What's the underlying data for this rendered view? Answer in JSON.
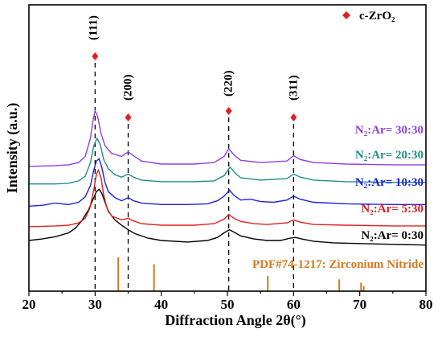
{
  "chart_data": {
    "type": "line",
    "xlabel": "Diffraction Angle 2θ(°)",
    "ylabel": "Intensity (a.u.)",
    "xlim": [
      20,
      80
    ],
    "xticks": [
      20,
      30,
      40,
      50,
      60,
      70,
      80
    ],
    "y_tick_labels": false,
    "legend": {
      "entries": [
        {
          "marker": "diamond",
          "color": "#e02020",
          "label": "c-ZrO₂"
        }
      ],
      "placement": "top-right"
    },
    "peaks": [
      {
        "x": 30,
        "label": "(111)"
      },
      {
        "x": 35,
        "label": "(200)"
      },
      {
        "x": 50.2,
        "label": "(220)"
      },
      {
        "x": 60,
        "label": "(311)"
      }
    ],
    "reference": {
      "label": "PDF#74-1217: Zirconium Nitride",
      "color": "#d4781f",
      "lines": [
        {
          "x": 33.5,
          "intensity": 1.0
        },
        {
          "x": 38.9,
          "intensity": 0.8
        },
        {
          "x": 56.1,
          "intensity": 0.45
        },
        {
          "x": 66.9,
          "intensity": 0.35
        },
        {
          "x": 70.2,
          "intensity": 0.25
        },
        {
          "x": 70.6,
          "intensity": 0.15
        }
      ]
    },
    "series": [
      {
        "name": "N₂:Ar= 0:30",
        "color": "#000000",
        "baseline": 0,
        "points": [
          [
            20,
            8
          ],
          [
            22,
            10
          ],
          [
            24,
            13
          ],
          [
            26,
            18
          ],
          [
            27,
            24
          ],
          [
            28,
            34
          ],
          [
            29,
            48
          ],
          [
            29.6,
            60
          ],
          [
            30.2,
            72
          ],
          [
            30.6,
            75
          ],
          [
            31,
            70
          ],
          [
            31.5,
            58
          ],
          [
            32,
            46
          ],
          [
            33,
            35
          ],
          [
            34,
            28
          ],
          [
            35,
            22
          ],
          [
            36,
            17
          ],
          [
            38,
            11
          ],
          [
            40,
            8
          ],
          [
            44,
            6
          ],
          [
            47,
            8
          ],
          [
            48.5,
            12
          ],
          [
            49.5,
            18
          ],
          [
            50.3,
            22
          ],
          [
            51,
            19
          ],
          [
            52,
            14
          ],
          [
            54,
            10
          ],
          [
            56,
            8
          ],
          [
            58,
            8
          ],
          [
            59.5,
            11
          ],
          [
            60.3,
            12
          ],
          [
            61.2,
            10
          ],
          [
            63,
            7
          ],
          [
            66,
            5
          ],
          [
            70,
            4
          ],
          [
            75,
            3
          ],
          [
            80,
            2
          ]
        ]
      },
      {
        "name": "N₂:Ar= 5:30",
        "color": "#e02020",
        "baseline": 0,
        "points": [
          [
            20,
            26
          ],
          [
            24,
            27
          ],
          [
            26,
            28
          ],
          [
            27.5,
            31
          ],
          [
            28.5,
            37
          ],
          [
            29.2,
            50
          ],
          [
            29.8,
            74
          ],
          [
            30.2,
            95
          ],
          [
            30.5,
            100
          ],
          [
            30.9,
            90
          ],
          [
            31.3,
            68
          ],
          [
            31.8,
            50
          ],
          [
            32.5,
            40
          ],
          [
            34,
            35
          ],
          [
            35,
            37
          ],
          [
            35.7,
            34
          ],
          [
            37,
            30
          ],
          [
            40,
            28
          ],
          [
            45,
            28
          ],
          [
            48,
            30
          ],
          [
            49.5,
            36
          ],
          [
            50.2,
            42
          ],
          [
            51,
            37
          ],
          [
            52,
            33
          ],
          [
            54,
            30
          ],
          [
            56,
            29
          ],
          [
            59,
            31
          ],
          [
            60,
            35
          ],
          [
            61,
            32
          ],
          [
            63,
            29
          ],
          [
            68,
            28
          ],
          [
            75,
            27
          ],
          [
            80,
            27
          ]
        ]
      },
      {
        "name": "N₂:Ar= 10:30",
        "color": "#2020e0",
        "baseline": 0,
        "points": [
          [
            20,
            53
          ],
          [
            22,
            54
          ],
          [
            24,
            57
          ],
          [
            25,
            56
          ],
          [
            26,
            55
          ],
          [
            27.5,
            58
          ],
          [
            28.5,
            65
          ],
          [
            29.3,
            80
          ],
          [
            29.8,
            100
          ],
          [
            30.2,
            112
          ],
          [
            30.6,
            115
          ],
          [
            31,
            104
          ],
          [
            31.5,
            84
          ],
          [
            32,
            72
          ],
          [
            33,
            64
          ],
          [
            34,
            60
          ],
          [
            35,
            64
          ],
          [
            35.8,
            60
          ],
          [
            37,
            57
          ],
          [
            40,
            55
          ],
          [
            44,
            55
          ],
          [
            47,
            56
          ],
          [
            48.5,
            60
          ],
          [
            49.5,
            66
          ],
          [
            50.3,
            74
          ],
          [
            51,
            67
          ],
          [
            52,
            61
          ],
          [
            53.5,
            62
          ],
          [
            55,
            59
          ],
          [
            57,
            58
          ],
          [
            59,
            61
          ],
          [
            60,
            66
          ],
          [
            61,
            62
          ],
          [
            63,
            58
          ],
          [
            68,
            56
          ],
          [
            75,
            55
          ],
          [
            80,
            55
          ]
        ]
      },
      {
        "name": "N₂:Ar= 20:30",
        "color": "#1f8f85",
        "baseline": 0,
        "points": [
          [
            20,
            82
          ],
          [
            24,
            82
          ],
          [
            26,
            83
          ],
          [
            27.5,
            86
          ],
          [
            28.5,
            92
          ],
          [
            29.3,
            110
          ],
          [
            29.8,
            132
          ],
          [
            30.3,
            142
          ],
          [
            30.8,
            133
          ],
          [
            31.3,
            114
          ],
          [
            32,
            102
          ],
          [
            33,
            94
          ],
          [
            34,
            91
          ],
          [
            35,
            95
          ],
          [
            35.8,
            91
          ],
          [
            37,
            87
          ],
          [
            40,
            85
          ],
          [
            45,
            85
          ],
          [
            48,
            86
          ],
          [
            49.5,
            93
          ],
          [
            50.4,
            104
          ],
          [
            51.2,
            96
          ],
          [
            52,
            90
          ],
          [
            55,
            87
          ],
          [
            59,
            89
          ],
          [
            60,
            95
          ],
          [
            61,
            91
          ],
          [
            63,
            87
          ],
          [
            68,
            85
          ],
          [
            75,
            84
          ],
          [
            80,
            84
          ]
        ]
      },
      {
        "name": "N₂:Ar= 30:30",
        "color": "#8f3fe0",
        "baseline": 0,
        "points": [
          [
            20,
            105
          ],
          [
            24,
            106
          ],
          [
            26,
            107
          ],
          [
            27.5,
            110
          ],
          [
            28.5,
            118
          ],
          [
            29.3,
            142
          ],
          [
            29.7,
            166
          ],
          [
            30,
            178
          ],
          [
            30.4,
            170
          ],
          [
            30.9,
            148
          ],
          [
            31.5,
            132
          ],
          [
            32.5,
            122
          ],
          [
            34,
            118
          ],
          [
            35,
            124
          ],
          [
            35.8,
            119
          ],
          [
            37,
            112
          ],
          [
            40,
            108
          ],
          [
            45,
            108
          ],
          [
            48,
            110
          ],
          [
            49.5,
            118
          ],
          [
            50.2,
            128
          ],
          [
            51,
            120
          ],
          [
            52,
            113
          ],
          [
            55,
            110
          ],
          [
            59,
            112
          ],
          [
            60,
            119
          ],
          [
            61,
            114
          ],
          [
            63,
            110
          ],
          [
            68,
            108
          ],
          [
            75,
            107
          ],
          [
            80,
            107
          ]
        ]
      }
    ]
  }
}
